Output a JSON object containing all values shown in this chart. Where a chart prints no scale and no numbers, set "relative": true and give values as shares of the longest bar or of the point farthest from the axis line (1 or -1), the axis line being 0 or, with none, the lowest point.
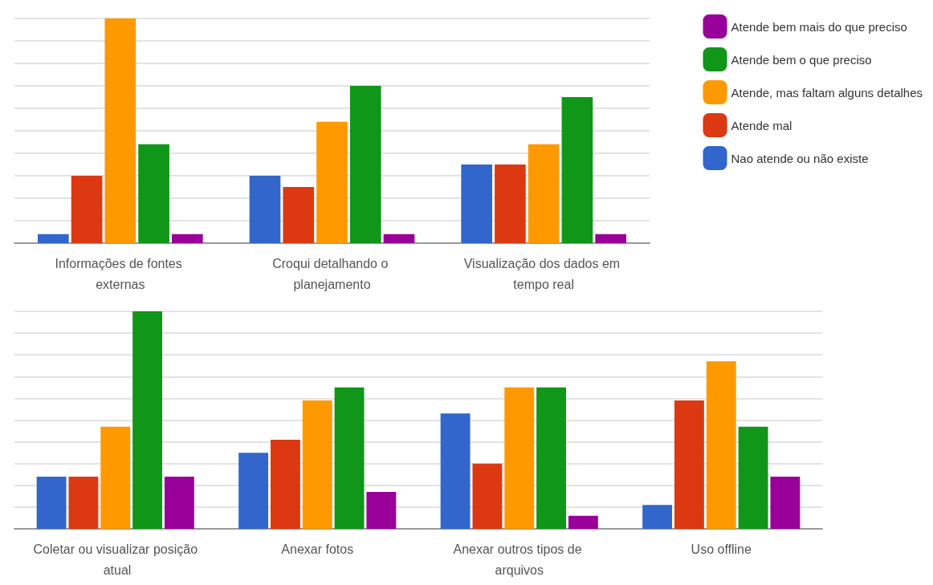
{
  "chart_data": [
    {
      "type": "bar",
      "relative": true,
      "grid": true,
      "legend": "right",
      "categories": [
        "Informações de fontes externas",
        "Croqui detalhando o planejamento",
        "Visualização dos dados em tempo real"
      ],
      "series": [
        {
          "name": "Nao atende ou não existe",
          "color": "#3366cc",
          "values": [
            0.04,
            0.3,
            0.35
          ]
        },
        {
          "name": "Atende mal",
          "color": "#dc3912",
          "values": [
            0.3,
            0.25,
            0.35
          ]
        },
        {
          "name": "Atende, mas faltam alguns detalhes",
          "color": "#ff9900",
          "values": [
            1,
            0.54,
            0.44
          ]
        },
        {
          "name": "Atende bem o que preciso",
          "color": "#109618",
          "values": [
            0.44,
            0.7,
            0.65
          ]
        },
        {
          "name": "Atende bem mais do que preciso",
          "color": "#990099",
          "values": [
            0.04,
            0.04,
            0.04
          ]
        }
      ]
    },
    {
      "type": "bar",
      "relative": true,
      "grid": true,
      "categories": [
        "Coletar ou visualizar posição atual",
        "Anexar fotos",
        "Anexar outros tipos de arquivos",
        "Uso offline"
      ],
      "series": [
        {
          "color": "#3366cc",
          "values": [
            0.24,
            0.35,
            0.53,
            0.11
          ]
        },
        {
          "color": "#dc3912",
          "values": [
            0.24,
            0.41,
            0.3,
            0.59
          ]
        },
        {
          "color": "#ff9900",
          "values": [
            0.47,
            0.59,
            0.65,
            0.77
          ]
        },
        {
          "color": "#109618",
          "values": [
            1,
            0.65,
            0.65,
            0.47
          ]
        },
        {
          "color": "#990099",
          "values": [
            0.24,
            0.17,
            0.06,
            0.24
          ]
        }
      ]
    }
  ]
}
